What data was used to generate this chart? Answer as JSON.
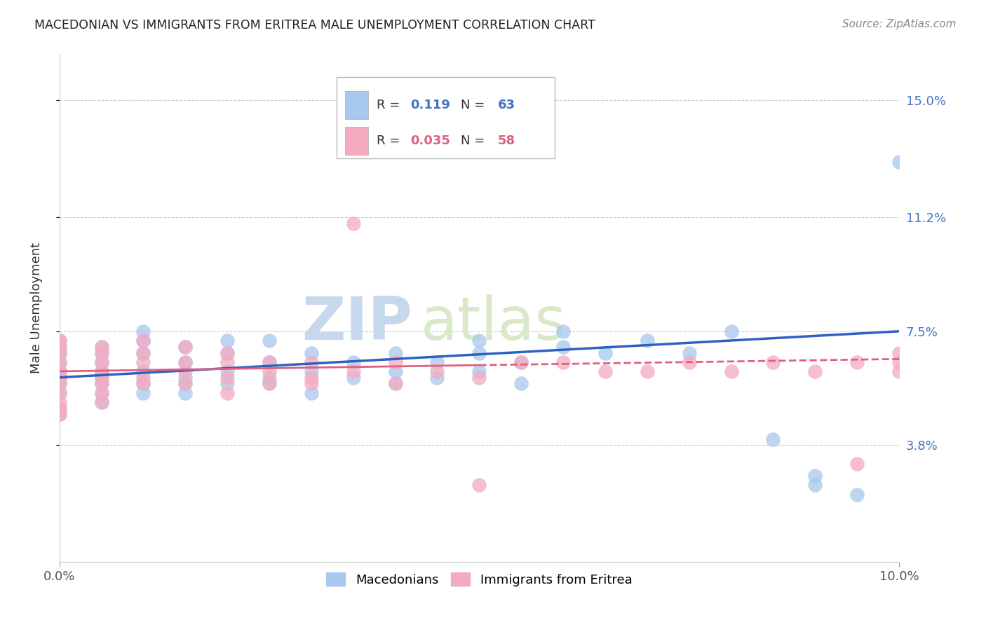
{
  "title": "MACEDONIAN VS IMMIGRANTS FROM ERITREA MALE UNEMPLOYMENT CORRELATION CHART",
  "source": "Source: ZipAtlas.com",
  "ylabel": "Male Unemployment",
  "yticks": [
    0.038,
    0.075,
    0.112,
    0.15
  ],
  "ytick_labels": [
    "3.8%",
    "7.5%",
    "11.2%",
    "15.0%"
  ],
  "xlim": [
    0.0,
    0.1
  ],
  "ylim": [
    0.0,
    0.165
  ],
  "r_macedonian": 0.119,
  "n_macedonian": 63,
  "r_eritrea": 0.035,
  "n_eritrea": 58,
  "blue_color": "#A8C8EE",
  "pink_color": "#F4AABF",
  "blue_line_color": "#3060C0",
  "pink_line_color": "#E06080",
  "mac_x": [
    0.0,
    0.0,
    0.0,
    0.0,
    0.0,
    0.0,
    0.0,
    0.0,
    0.0,
    0.0,
    0.005,
    0.005,
    0.005,
    0.005,
    0.005,
    0.005,
    0.005,
    0.005,
    0.01,
    0.01,
    0.01,
    0.01,
    0.01,
    0.01,
    0.015,
    0.015,
    0.015,
    0.015,
    0.015,
    0.02,
    0.02,
    0.02,
    0.02,
    0.025,
    0.025,
    0.025,
    0.025,
    0.03,
    0.03,
    0.03,
    0.035,
    0.035,
    0.04,
    0.04,
    0.04,
    0.045,
    0.045,
    0.05,
    0.05,
    0.05,
    0.055,
    0.055,
    0.06,
    0.06,
    0.065,
    0.07,
    0.075,
    0.08,
    0.085,
    0.09,
    0.09,
    0.095,
    0.1
  ],
  "mac_y": [
    0.06,
    0.062,
    0.058,
    0.065,
    0.055,
    0.068,
    0.05,
    0.048,
    0.072,
    0.07,
    0.055,
    0.06,
    0.052,
    0.065,
    0.058,
    0.062,
    0.068,
    0.07,
    0.058,
    0.062,
    0.068,
    0.055,
    0.072,
    0.075,
    0.06,
    0.065,
    0.058,
    0.07,
    0.055,
    0.062,
    0.068,
    0.058,
    0.072,
    0.065,
    0.06,
    0.058,
    0.072,
    0.062,
    0.068,
    0.055,
    0.06,
    0.065,
    0.058,
    0.062,
    0.068,
    0.065,
    0.06,
    0.068,
    0.072,
    0.062,
    0.065,
    0.058,
    0.07,
    0.075,
    0.068,
    0.072,
    0.068,
    0.075,
    0.04,
    0.025,
    0.028,
    0.022,
    0.13
  ],
  "eri_x": [
    0.0,
    0.0,
    0.0,
    0.0,
    0.0,
    0.0,
    0.0,
    0.0,
    0.0,
    0.0,
    0.0,
    0.005,
    0.005,
    0.005,
    0.005,
    0.005,
    0.005,
    0.005,
    0.005,
    0.01,
    0.01,
    0.01,
    0.01,
    0.01,
    0.015,
    0.015,
    0.015,
    0.015,
    0.02,
    0.02,
    0.02,
    0.02,
    0.025,
    0.025,
    0.025,
    0.03,
    0.03,
    0.03,
    0.035,
    0.035,
    0.04,
    0.04,
    0.045,
    0.05,
    0.05,
    0.055,
    0.06,
    0.065,
    0.07,
    0.075,
    0.08,
    0.085,
    0.09,
    0.095,
    0.095,
    0.1,
    0.1,
    0.1
  ],
  "eri_y": [
    0.065,
    0.062,
    0.058,
    0.068,
    0.055,
    0.06,
    0.07,
    0.072,
    0.052,
    0.048,
    0.05,
    0.058,
    0.062,
    0.065,
    0.055,
    0.068,
    0.052,
    0.06,
    0.07,
    0.06,
    0.065,
    0.058,
    0.068,
    0.072,
    0.062,
    0.058,
    0.065,
    0.07,
    0.06,
    0.065,
    0.055,
    0.068,
    0.062,
    0.058,
    0.065,
    0.06,
    0.065,
    0.058,
    0.062,
    0.11,
    0.058,
    0.065,
    0.062,
    0.025,
    0.06,
    0.065,
    0.065,
    0.062,
    0.062,
    0.065,
    0.062,
    0.065,
    0.062,
    0.032,
    0.065,
    0.062,
    0.068,
    0.065
  ]
}
